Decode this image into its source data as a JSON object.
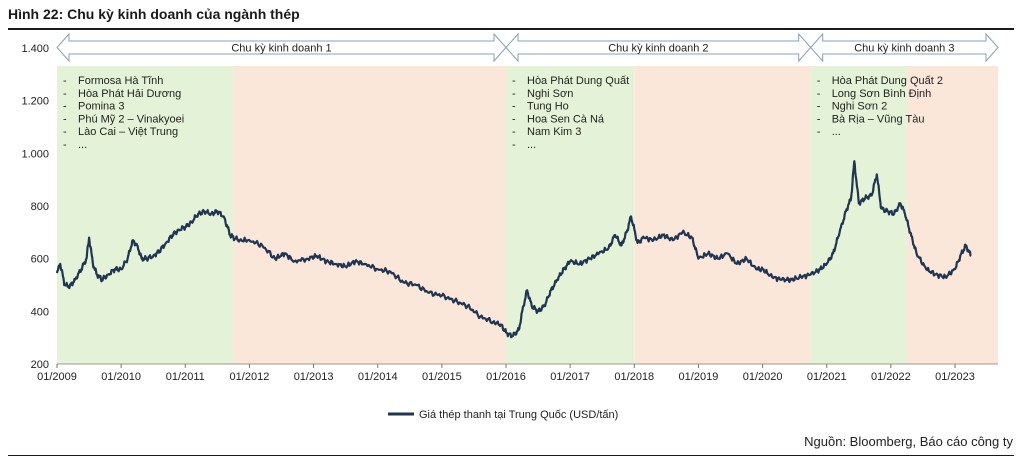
{
  "figure": {
    "title": "Hình 22: Chu kỳ kinh doanh của ngành thép",
    "source": "Nguồn: Bloomberg, Báo cáo công ty"
  },
  "colors": {
    "line": "#1f3552",
    "green_band": "#e4f3d8",
    "orange_band": "#fbe6da",
    "arrow_stroke": "#8aa0b4"
  },
  "chart_data": {
    "type": "line",
    "title": "",
    "xlabel": "",
    "ylabel": "",
    "ylim": [
      200,
      1400
    ],
    "yticks": [
      200,
      400,
      600,
      800,
      1000,
      1200,
      1400
    ],
    "ytick_labels": [
      "200",
      "400",
      "600",
      "800",
      "1.000",
      "1.200",
      "1.400"
    ],
    "xlim": [
      2009.0,
      2023.67
    ],
    "xticks": [
      2009,
      2010,
      2011,
      2012,
      2013,
      2014,
      2015,
      2016,
      2017,
      2018,
      2019,
      2020,
      2021,
      2022,
      2023
    ],
    "xtick_labels": [
      "01/2009",
      "01/2010",
      "01/2011",
      "01/2012",
      "01/2013",
      "01/2014",
      "01/2015",
      "01/2016",
      "01/2017",
      "01/2018",
      "01/2019",
      "01/2020",
      "01/2021",
      "01/2022",
      "01/2023"
    ],
    "legend": {
      "position": "bottom"
    },
    "series": [
      {
        "name": "Giá thép thanh tại Trung Quốc (USD/tấn)",
        "x": [
          2009.0,
          2009.05,
          2009.12,
          2009.2,
          2009.28,
          2009.38,
          2009.46,
          2009.5,
          2009.56,
          2009.62,
          2009.7,
          2009.8,
          2009.9,
          2010.0,
          2010.1,
          2010.18,
          2010.25,
          2010.32,
          2010.4,
          2010.5,
          2010.6,
          2010.7,
          2010.8,
          2010.9,
          2011.0,
          2011.1,
          2011.2,
          2011.3,
          2011.4,
          2011.5,
          2011.6,
          2011.7,
          2011.75,
          2011.85,
          2012.0,
          2012.2,
          2012.4,
          2012.55,
          2012.7,
          2012.9,
          2013.05,
          2013.2,
          2013.35,
          2013.5,
          2013.65,
          2013.8,
          2014.0,
          2014.2,
          2014.4,
          2014.6,
          2014.8,
          2015.0,
          2015.2,
          2015.4,
          2015.6,
          2015.8,
          2015.92,
          2016.0,
          2016.1,
          2016.2,
          2016.27,
          2016.33,
          2016.4,
          2016.5,
          2016.6,
          2016.7,
          2016.8,
          2016.9,
          2017.0,
          2017.15,
          2017.3,
          2017.45,
          2017.6,
          2017.7,
          2017.8,
          2017.88,
          2017.95,
          2018.05,
          2018.15,
          2018.3,
          2018.45,
          2018.6,
          2018.75,
          2018.9,
          2019.0,
          2019.15,
          2019.3,
          2019.45,
          2019.6,
          2019.75,
          2019.9,
          2020.0,
          2020.15,
          2020.3,
          2020.45,
          2020.6,
          2020.75,
          2020.9,
          2021.0,
          2021.1,
          2021.2,
          2021.3,
          2021.38,
          2021.43,
          2021.5,
          2021.6,
          2021.7,
          2021.78,
          2021.85,
          2021.95,
          2022.05,
          2022.15,
          2022.22,
          2022.3,
          2022.4,
          2022.55,
          2022.7,
          2022.85,
          2023.0,
          2023.1,
          2023.17,
          2023.25
        ],
        "y": [
          545,
          580,
          500,
          495,
          520,
          560,
          600,
          680,
          580,
          540,
          520,
          540,
          560,
          560,
          600,
          670,
          650,
          600,
          600,
          610,
          630,
          660,
          690,
          710,
          720,
          740,
          770,
          780,
          770,
          780,
          760,
          690,
          680,
          670,
          670,
          650,
          600,
          620,
          590,
          600,
          610,
          590,
          580,
          570,
          590,
          580,
          560,
          550,
          510,
          500,
          470,
          460,
          440,
          420,
          380,
          360,
          350,
          320,
          305,
          330,
          420,
          480,
          420,
          400,
          420,
          480,
          520,
          560,
          590,
          580,
          600,
          620,
          640,
          690,
          650,
          700,
          760,
          660,
          680,
          670,
          690,
          670,
          700,
          680,
          600,
          620,
          600,
          620,
          580,
          600,
          560,
          560,
          530,
          520,
          520,
          530,
          540,
          560,
          580,
          620,
          700,
          780,
          830,
          970,
          810,
          830,
          840,
          920,
          790,
          780,
          770,
          810,
          770,
          700,
          620,
          560,
          540,
          530,
          560,
          620,
          650,
          610
        ]
      }
    ],
    "cycles": [
      {
        "label": "Chu kỳ kinh doanh 1",
        "start": 2009.0,
        "end": 2016.0,
        "boom_end": 2011.75,
        "plants": [
          "Formosa Hà Tĩnh",
          "Hòa Phát Hải Dương",
          "Pomina 3",
          "Phú Mỹ 2 – Vinakyoei",
          "Lào Cai – Việt Trung",
          "..."
        ]
      },
      {
        "label": "Chu kỳ kinh doanh 2",
        "start": 2016.0,
        "end": 2020.75,
        "boom_end": 2018.0,
        "plants": [
          "Hòa Phát Dung Quất",
          "Nghi Sơn",
          "Tung Ho",
          "Hoa Sen Cà Ná",
          "Nam Kim 3",
          "..."
        ]
      },
      {
        "label": "Chu kỳ kinh doanh 3",
        "start": 2020.75,
        "end": 2023.67,
        "boom_end": 2022.25,
        "plants": [
          "Hòa Phát Dung Quất 2",
          "Long Sơn Bình Định",
          "Nghi Sơn 2",
          "Bà Rịa – Vũng Tàu",
          "..."
        ]
      }
    ]
  }
}
